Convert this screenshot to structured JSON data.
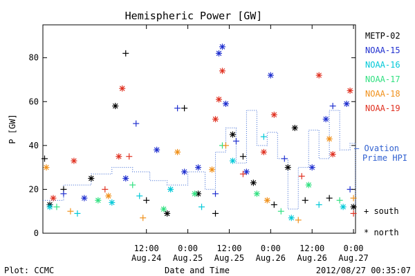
{
  "chart_data": {
    "type": "scatter",
    "title": "Hemispheric Power [GW]",
    "ylabel": "P [GW]",
    "xlabel": "Date and Time",
    "xlim": [
      "2012-08-23 06:00",
      "2012-08-27 00:35"
    ],
    "ylim": [
      0,
      95
    ],
    "grid": false,
    "y_ticks": [
      0,
      20,
      40,
      60,
      80
    ],
    "x_ticks": [
      {
        "t": "2012-08-24 12:00",
        "line1": "12:00",
        "line2": "Aug.24"
      },
      {
        "t": "2012-08-25 00:00",
        "line1": "0:00",
        "line2": "Aug.25"
      },
      {
        "t": "2012-08-25 12:00",
        "line1": "12:00",
        "line2": "Aug.25"
      },
      {
        "t": "2012-08-26 00:00",
        "line1": "0:00",
        "line2": "Aug.26"
      },
      {
        "t": "2012-08-26 12:00",
        "line1": "12:00",
        "line2": "Aug.26"
      },
      {
        "t": "2012-08-27 00:00",
        "line1": "0:00",
        "line2": "Aug.27"
      }
    ],
    "legend_placement": "right",
    "series": [
      {
        "name": "METP-02",
        "color": "#000000",
        "points": [
          {
            "t": "2012-08-23 06:30",
            "v": 34,
            "m": "south"
          },
          {
            "t": "2012-08-23 08:00",
            "v": 13,
            "m": "north"
          },
          {
            "t": "2012-08-23 12:00",
            "v": 20,
            "m": "south"
          },
          {
            "t": "2012-08-23 20:00",
            "v": 25,
            "m": "north"
          },
          {
            "t": "2012-08-24 03:00",
            "v": 58,
            "m": "north"
          },
          {
            "t": "2012-08-24 06:00",
            "v": 82,
            "m": "south"
          },
          {
            "t": "2012-08-24 12:00",
            "v": 15,
            "m": "south"
          },
          {
            "t": "2012-08-24 18:00",
            "v": 9,
            "m": "north"
          },
          {
            "t": "2012-08-24 23:00",
            "v": 57,
            "m": "south"
          },
          {
            "t": "2012-08-25 03:00",
            "v": 18,
            "m": "north"
          },
          {
            "t": "2012-08-25 08:00",
            "v": 9,
            "m": "south"
          },
          {
            "t": "2012-08-25 13:00",
            "v": 45,
            "m": "north"
          },
          {
            "t": "2012-08-25 16:00",
            "v": 35,
            "m": "south"
          },
          {
            "t": "2012-08-25 19:00",
            "v": 23,
            "m": "north"
          },
          {
            "t": "2012-08-26 01:00",
            "v": 13,
            "m": "south"
          },
          {
            "t": "2012-08-26 05:00",
            "v": 30,
            "m": "north"
          },
          {
            "t": "2012-08-26 07:00",
            "v": 48,
            "m": "north"
          },
          {
            "t": "2012-08-26 10:00",
            "v": 15,
            "m": "south"
          },
          {
            "t": "2012-08-26 17:00",
            "v": 16,
            "m": "south"
          },
          {
            "t": "2012-08-27 00:00",
            "v": 12,
            "m": "north"
          }
        ]
      },
      {
        "name": "NOAA-15",
        "color": "#1f2fcf",
        "points": [
          {
            "t": "2012-08-23 12:00",
            "v": 18,
            "m": "south"
          },
          {
            "t": "2012-08-23 18:00",
            "v": 16,
            "m": "north"
          },
          {
            "t": "2012-08-24 06:00",
            "v": 25,
            "m": "north"
          },
          {
            "t": "2012-08-24 09:00",
            "v": 50,
            "m": "south"
          },
          {
            "t": "2012-08-24 15:00",
            "v": 38,
            "m": "north"
          },
          {
            "t": "2012-08-24 21:00",
            "v": 57,
            "m": "south"
          },
          {
            "t": "2012-08-24 23:00",
            "v": 28,
            "m": "north"
          },
          {
            "t": "2012-08-25 03:00",
            "v": 30,
            "m": "north"
          },
          {
            "t": "2012-08-25 08:00",
            "v": 18,
            "m": "south"
          },
          {
            "t": "2012-08-25 09:00",
            "v": 82,
            "m": "north"
          },
          {
            "t": "2012-08-25 10:00",
            "v": 85,
            "m": "north"
          },
          {
            "t": "2012-08-25 11:00",
            "v": 59,
            "m": "north"
          },
          {
            "t": "2012-08-25 14:00",
            "v": 42,
            "m": "south"
          },
          {
            "t": "2012-08-25 17:00",
            "v": 28,
            "m": "north"
          },
          {
            "t": "2012-08-26 00:00",
            "v": 72,
            "m": "north"
          },
          {
            "t": "2012-08-26 04:00",
            "v": 34,
            "m": "south"
          },
          {
            "t": "2012-08-26 12:00",
            "v": 30,
            "m": "north"
          },
          {
            "t": "2012-08-26 16:00",
            "v": 52,
            "m": "north"
          },
          {
            "t": "2012-08-26 18:00",
            "v": 58,
            "m": "south"
          },
          {
            "t": "2012-08-26 22:00",
            "v": 59,
            "m": "north"
          },
          {
            "t": "2012-08-26 23:00",
            "v": 20,
            "m": "south"
          }
        ]
      },
      {
        "name": "NOAA-16",
        "color": "#00c8d8",
        "points": [
          {
            "t": "2012-08-23 08:00",
            "v": 12,
            "m": "north"
          },
          {
            "t": "2012-08-23 16:00",
            "v": 9,
            "m": "south"
          },
          {
            "t": "2012-08-24 02:00",
            "v": 14,
            "m": "north"
          },
          {
            "t": "2012-08-24 10:00",
            "v": 17,
            "m": "south"
          },
          {
            "t": "2012-08-24 19:00",
            "v": 20,
            "m": "north"
          },
          {
            "t": "2012-08-25 04:00",
            "v": 12,
            "m": "south"
          },
          {
            "t": "2012-08-25 13:00",
            "v": 33,
            "m": "north"
          },
          {
            "t": "2012-08-25 22:00",
            "v": 44,
            "m": "south"
          },
          {
            "t": "2012-08-26 06:00",
            "v": 7,
            "m": "north"
          },
          {
            "t": "2012-08-26 14:00",
            "v": 13,
            "m": "south"
          },
          {
            "t": "2012-08-26 21:00",
            "v": 12,
            "m": "north"
          }
        ]
      },
      {
        "name": "NOAA-17",
        "color": "#30e080",
        "points": [
          {
            "t": "2012-08-23 10:00",
            "v": 12,
            "m": "south"
          },
          {
            "t": "2012-08-23 22:00",
            "v": 15,
            "m": "north"
          },
          {
            "t": "2012-08-24 08:00",
            "v": 22,
            "m": "south"
          },
          {
            "t": "2012-08-24 17:00",
            "v": 11,
            "m": "north"
          },
          {
            "t": "2012-08-25 02:00",
            "v": 18,
            "m": "north"
          },
          {
            "t": "2012-08-25 10:00",
            "v": 40,
            "m": "south"
          },
          {
            "t": "2012-08-25 20:00",
            "v": 18,
            "m": "north"
          },
          {
            "t": "2012-08-26 03:00",
            "v": 10,
            "m": "south"
          },
          {
            "t": "2012-08-26 11:00",
            "v": 22,
            "m": "north"
          },
          {
            "t": "2012-08-26 20:00",
            "v": 15,
            "m": "south"
          }
        ]
      },
      {
        "name": "NOAA-18",
        "color": "#f0901a",
        "points": [
          {
            "t": "2012-08-23 07:00",
            "v": 30,
            "m": "north"
          },
          {
            "t": "2012-08-23 14:00",
            "v": 10,
            "m": "south"
          },
          {
            "t": "2012-08-24 01:00",
            "v": 17,
            "m": "north"
          },
          {
            "t": "2012-08-24 11:00",
            "v": 7,
            "m": "south"
          },
          {
            "t": "2012-08-24 21:00",
            "v": 37,
            "m": "north"
          },
          {
            "t": "2012-08-25 07:00",
            "v": 29,
            "m": "north"
          },
          {
            "t": "2012-08-25 11:00",
            "v": 40,
            "m": "south"
          },
          {
            "t": "2012-08-25 23:00",
            "v": 15,
            "m": "north"
          },
          {
            "t": "2012-08-26 08:00",
            "v": 6,
            "m": "south"
          },
          {
            "t": "2012-08-26 17:00",
            "v": 43,
            "m": "north"
          },
          {
            "t": "2012-08-27 00:00",
            "v": 16,
            "m": "south"
          }
        ]
      },
      {
        "name": "NOAA-19",
        "color": "#e03020",
        "points": [
          {
            "t": "2012-08-23 09:00",
            "v": 16,
            "m": "north"
          },
          {
            "t": "2012-08-23 15:00",
            "v": 33,
            "m": "north"
          },
          {
            "t": "2012-08-24 00:00",
            "v": 20,
            "m": "south"
          },
          {
            "t": "2012-08-24 04:00",
            "v": 35,
            "m": "north"
          },
          {
            "t": "2012-08-24 05:00",
            "v": 66,
            "m": "north"
          },
          {
            "t": "2012-08-24 07:00",
            "v": 35,
            "m": "south"
          },
          {
            "t": "2012-08-25 08:00",
            "v": 52,
            "m": "north"
          },
          {
            "t": "2012-08-25 09:00",
            "v": 61,
            "m": "north"
          },
          {
            "t": "2012-08-25 10:00",
            "v": 74,
            "m": "north"
          },
          {
            "t": "2012-08-25 16:00",
            "v": 27,
            "m": "south"
          },
          {
            "t": "2012-08-25 22:00",
            "v": 37,
            "m": "north"
          },
          {
            "t": "2012-08-26 01:00",
            "v": 54,
            "m": "north"
          },
          {
            "t": "2012-08-26 09:00",
            "v": 26,
            "m": "south"
          },
          {
            "t": "2012-08-26 14:00",
            "v": 72,
            "m": "north"
          },
          {
            "t": "2012-08-26 18:00",
            "v": 36,
            "m": "north"
          },
          {
            "t": "2012-08-26 23:00",
            "v": 65,
            "m": "north"
          },
          {
            "t": "2012-08-27 00:00",
            "v": 9,
            "m": "south"
          }
        ]
      }
    ],
    "ovation": {
      "name": "— Ovation Prime HPI",
      "label_line1": "— Ovation",
      "label_line2": "Prime HPI",
      "color": "#3060d0",
      "steps": [
        {
          "t": "2012-08-23 06:00",
          "v": 15
        },
        {
          "t": "2012-08-23 12:00",
          "v": 22
        },
        {
          "t": "2012-08-23 20:00",
          "v": 27
        },
        {
          "t": "2012-08-24 02:00",
          "v": 30
        },
        {
          "t": "2012-08-24 08:00",
          "v": 28
        },
        {
          "t": "2012-08-24 13:00",
          "v": 24
        },
        {
          "t": "2012-08-24 18:00",
          "v": 22
        },
        {
          "t": "2012-08-25 00:00",
          "v": 28
        },
        {
          "t": "2012-08-25 05:00",
          "v": 20
        },
        {
          "t": "2012-08-25 08:00",
          "v": 37
        },
        {
          "t": "2012-08-25 11:00",
          "v": 48
        },
        {
          "t": "2012-08-25 14:00",
          "v": 32
        },
        {
          "t": "2012-08-25 17:00",
          "v": 56
        },
        {
          "t": "2012-08-25 20:00",
          "v": 40
        },
        {
          "t": "2012-08-25 23:00",
          "v": 46
        },
        {
          "t": "2012-08-26 02:00",
          "v": 34
        },
        {
          "t": "2012-08-26 05:00",
          "v": 11
        },
        {
          "t": "2012-08-26 08:00",
          "v": 30
        },
        {
          "t": "2012-08-26 11:00",
          "v": 47
        },
        {
          "t": "2012-08-26 14:00",
          "v": 34
        },
        {
          "t": "2012-08-26 17:00",
          "v": 56
        },
        {
          "t": "2012-08-26 20:00",
          "v": 38
        },
        {
          "t": "2012-08-26 23:00",
          "v": 41
        },
        {
          "t": "2012-08-27 01:00",
          "v": 16
        },
        {
          "t": "2012-08-27 03:00",
          "v": 13
        }
      ]
    },
    "marker_legend": [
      {
        "symbol": "+",
        "label": "south"
      },
      {
        "symbol": "*",
        "label": "north"
      }
    ]
  },
  "footer": {
    "left": "Plot: CCMC",
    "right": "2012/08/27 00:35:07"
  }
}
